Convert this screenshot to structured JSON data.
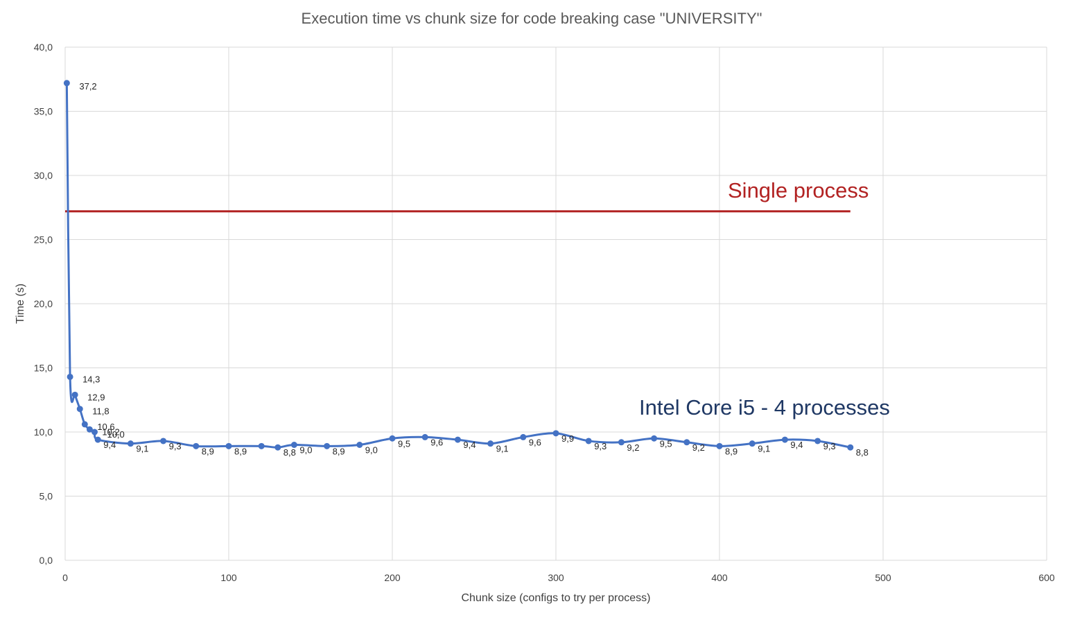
{
  "chart_data": {
    "type": "line",
    "title": "Execution time vs chunk size for code breaking case \"UNIVERSITY\"",
    "xlabel": "Chunk size (configs to try per process)",
    "ylabel": "Time (s)",
    "xlim": [
      0,
      600
    ],
    "ylim": [
      0,
      40
    ],
    "x_ticks": [
      "0",
      "100",
      "200",
      "300",
      "400",
      "500",
      "600"
    ],
    "y_ticks": [
      "0,0",
      "5,0",
      "10,0",
      "15,0",
      "20,0",
      "25,0",
      "30,0",
      "35,0",
      "40,0"
    ],
    "grid": true,
    "legend": "none",
    "series": [
      {
        "color": "#4472c4",
        "points": [
          {
            "x": 1,
            "y": 37.2,
            "label": "37,2"
          },
          {
            "x": 3,
            "y": 14.3,
            "label": "14,3"
          },
          {
            "x": 6,
            "y": 12.9,
            "label": "12,9"
          },
          {
            "x": 9,
            "y": 11.8,
            "label": "11,8"
          },
          {
            "x": 12,
            "y": 10.6,
            "label": "10,6"
          },
          {
            "x": 15,
            "y": 10.2,
            "label": "10,2"
          },
          {
            "x": 18,
            "y": 10.0,
            "label": "10,0"
          },
          {
            "x": 20,
            "y": 9.4,
            "label": "9,4"
          },
          {
            "x": 40,
            "y": 9.1,
            "label": "9,1"
          },
          {
            "x": 60,
            "y": 9.3,
            "label": "9,3"
          },
          {
            "x": 80,
            "y": 8.9,
            "label": "8,9"
          },
          {
            "x": 100,
            "y": 8.9,
            "label": "8,9"
          },
          {
            "x": 120,
            "y": 8.9,
            "label": ""
          },
          {
            "x": 130,
            "y": 8.8,
            "label": "8,8"
          },
          {
            "x": 140,
            "y": 9.0,
            "label": "9,0"
          },
          {
            "x": 160,
            "y": 8.9,
            "label": "8,9"
          },
          {
            "x": 180,
            "y": 9.0,
            "label": "9,0"
          },
          {
            "x": 200,
            "y": 9.5,
            "label": "9,5"
          },
          {
            "x": 220,
            "y": 9.6,
            "label": "9,6"
          },
          {
            "x": 240,
            "y": 9.4,
            "label": "9,4"
          },
          {
            "x": 260,
            "y": 9.1,
            "label": "9,1"
          },
          {
            "x": 280,
            "y": 9.6,
            "label": "9,6"
          },
          {
            "x": 300,
            "y": 9.9,
            "label": "9,9"
          },
          {
            "x": 320,
            "y": 9.3,
            "label": "9,3"
          },
          {
            "x": 340,
            "y": 9.2,
            "label": "9,2"
          },
          {
            "x": 360,
            "y": 9.5,
            "label": "9,5"
          },
          {
            "x": 380,
            "y": 9.2,
            "label": "9,2"
          },
          {
            "x": 400,
            "y": 8.9,
            "label": "8,9"
          },
          {
            "x": 420,
            "y": 9.1,
            "label": "9,1"
          },
          {
            "x": 440,
            "y": 9.4,
            "label": "9,4"
          },
          {
            "x": 460,
            "y": 9.3,
            "label": "9,3"
          },
          {
            "x": 480,
            "y": 8.8,
            "label": "8,8"
          }
        ]
      }
    ],
    "reference_line": {
      "x_start": 0,
      "x_end": 480,
      "y": 27.2,
      "color": "#b22222"
    },
    "annotations": [
      {
        "text": "Single process",
        "color": "#b22222"
      },
      {
        "text": "Intel Core i5 - 4 processes",
        "color": "#1f3864"
      }
    ]
  }
}
